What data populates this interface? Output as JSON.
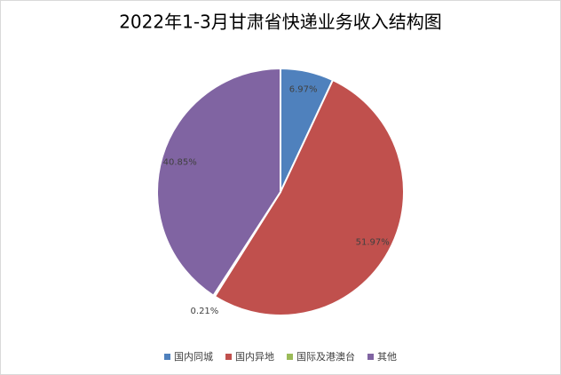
{
  "chart_data": {
    "type": "pie",
    "title": "2022年1-3月甘肃省快递业务收入结构图",
    "categories": [
      "国内同城",
      "国内异地",
      "国际及港澳台",
      "其他"
    ],
    "values": [
      6.97,
      51.97,
      0.21,
      40.85
    ],
    "value_labels": [
      "6.97%",
      "51.97%",
      "0.21%",
      "40.85%"
    ],
    "colors": [
      "#4f81bd",
      "#c0504d",
      "#9bbb59",
      "#8064a2"
    ],
    "legend": "bottom"
  }
}
